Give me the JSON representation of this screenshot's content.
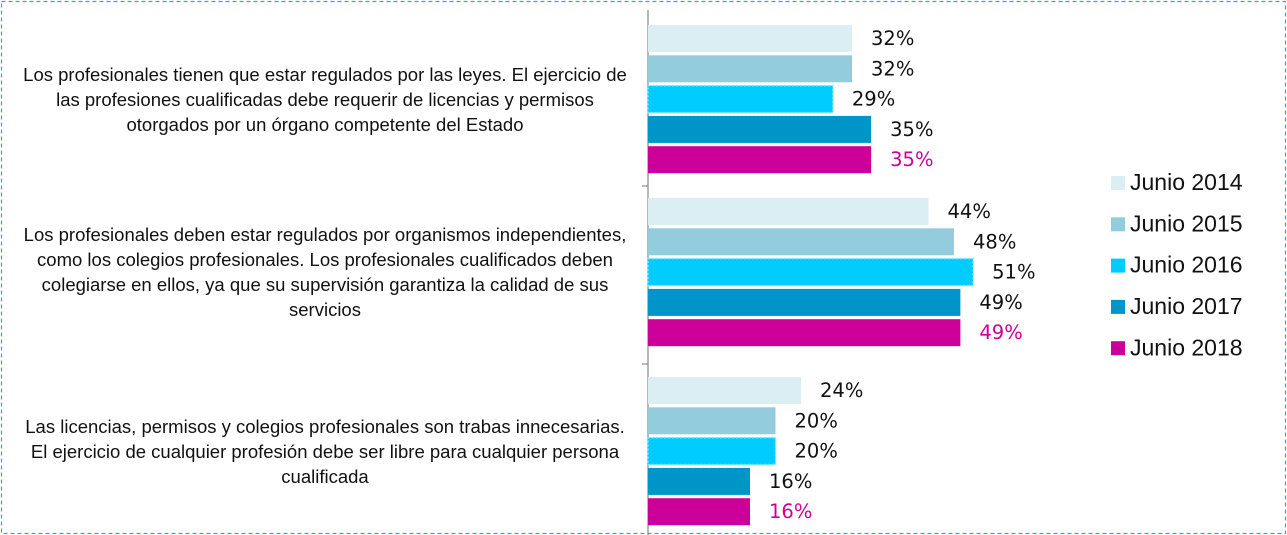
{
  "chart_data": {
    "type": "bar",
    "orientation": "horizontal",
    "categories": [
      "Los profesionales tienen que estar regulados por las leyes.  El ejercicio de las profesiones cualificadas debe requerir de licencias y permisos otorgados por un órgano competente del Estado",
      "Los profesionales deben estar regulados por organismos independientes, como los colegios profesionales. Los profesionales cualificados deben colegiarse en ellos, ya que su supervisión garantiza la calidad de sus servicios",
      "Las licencias, permisos y colegios profesionales son trabas innecesarias. El ejercicio de cualquier profesión debe ser libre para cualquier persona cualificada"
    ],
    "series": [
      {
        "name": "Junio 2014",
        "color": "#dbeef3",
        "values": [
          32,
          44,
          24
        ],
        "value_labels": [
          "32%",
          "44%",
          "24%"
        ]
      },
      {
        "name": "Junio 2015",
        "color": "#93cddd",
        "values": [
          32,
          48,
          20
        ],
        "value_labels": [
          "32%",
          "48%",
          "20%"
        ]
      },
      {
        "name": "Junio 2016",
        "color": "#00ccff",
        "values": [
          29,
          51,
          20
        ],
        "value_labels": [
          "29%",
          "51%",
          "20%"
        ]
      },
      {
        "name": "Junio 2017",
        "color": "#0095c8",
        "values": [
          35,
          49,
          16
        ],
        "value_labels": [
          "35%",
          "49%",
          "16%"
        ]
      },
      {
        "name": "Junio 2018",
        "color": "#cc0099",
        "values": [
          35,
          49,
          16
        ],
        "value_labels": [
          "35%",
          "49%",
          "16%"
        ]
      }
    ],
    "xlim": [
      0,
      100
    ],
    "legend": "right"
  }
}
